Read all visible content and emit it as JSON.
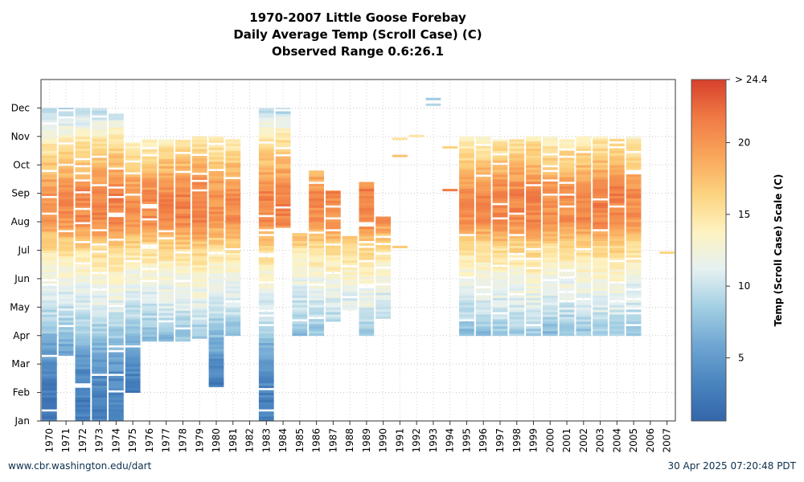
{
  "title": {
    "line1": "1970-2007 Little Goose Forebay",
    "line2": "Daily Average Temp (Scroll Case) (C)",
    "line3": "Observed Range 0.6:26.1"
  },
  "footer": {
    "left": "www.cbr.washington.edu/dart",
    "right": "30 Apr 2025 07:20:48 PDT"
  },
  "chart_data": {
    "type": "heatmap",
    "years": [
      "1970",
      "1971",
      "1972",
      "1973",
      "1974",
      "1975",
      "1976",
      "1977",
      "1978",
      "1979",
      "1980",
      "1981",
      "1982",
      "1983",
      "1984",
      "1985",
      "1986",
      "1987",
      "1988",
      "1989",
      "1990",
      "1991",
      "1992",
      "1993",
      "1994",
      "1995",
      "1996",
      "1997",
      "1998",
      "1999",
      "2000",
      "2001",
      "2002",
      "2003",
      "2004",
      "2005",
      "2006",
      "2007"
    ],
    "months": [
      "Jan",
      "Feb",
      "Mar",
      "Apr",
      "May",
      "Jun",
      "Jul",
      "Aug",
      "Sep",
      "Oct",
      "Nov",
      "Dec"
    ],
    "colorbar": {
      "label": "Temp (Scroll Case) Scale (C)",
      "ticks": [
        "5",
        "10",
        "15",
        "20"
      ],
      "top_label": "> 24.4",
      "min": 0.6,
      "max": 24.4
    },
    "colors": [
      "#3366aa",
      "#4a84bf",
      "#6fa6d2",
      "#a3cfe3",
      "#e6f1f2",
      "#fef2c0",
      "#fcd27e",
      "#f9a55a",
      "#f07a44",
      "#d7402c"
    ],
    "coverage": [
      {
        "year": "1970",
        "start": 1,
        "end": 12
      },
      {
        "year": "1971",
        "start": 3.3,
        "end": 12
      },
      {
        "year": "1972",
        "start": 1,
        "end": 12
      },
      {
        "year": "1973",
        "start": 1,
        "end": 12
      },
      {
        "year": "1974",
        "start": 1,
        "end": 11.8
      },
      {
        "year": "1975",
        "start": 2,
        "end": 10.8
      },
      {
        "year": "1976",
        "start": 3.8,
        "end": 10.9
      },
      {
        "year": "1977",
        "start": 3.8,
        "end": 10.9
      },
      {
        "year": "1978",
        "start": 3.8,
        "end": 10.9
      },
      {
        "year": "1979",
        "start": 3.9,
        "end": 11
      },
      {
        "year": "1980",
        "start": 2.2,
        "end": 11
      },
      {
        "year": "1981",
        "start": 4,
        "end": 10.9
      },
      {
        "year": "1983",
        "start": 1,
        "end": 12
      },
      {
        "year": "1984",
        "start": 7.8,
        "end": 12
      },
      {
        "year": "1985",
        "start": 4,
        "end": 7.6
      },
      {
        "year": "1986",
        "start": 4,
        "end": 9.8
      },
      {
        "year": "1987",
        "start": 4.5,
        "end": 9.1
      },
      {
        "year": "1988",
        "start": 4.9,
        "end": 7.5
      },
      {
        "year": "1989",
        "start": 4,
        "end": 9.4
      },
      {
        "year": "1990",
        "start": 4.6,
        "end": 8.2
      },
      {
        "year": "1995",
        "start": 4,
        "end": 11
      },
      {
        "year": "1996",
        "start": 4,
        "end": 11
      },
      {
        "year": "1997",
        "start": 4,
        "end": 10.9
      },
      {
        "year": "1998",
        "start": 4,
        "end": 10.9
      },
      {
        "year": "1999",
        "start": 4,
        "end": 11
      },
      {
        "year": "2000",
        "start": 4,
        "end": 11
      },
      {
        "year": "2001",
        "start": 4,
        "end": 10.9
      },
      {
        "year": "2002",
        "start": 4,
        "end": 11
      },
      {
        "year": "2003",
        "start": 4,
        "end": 11
      },
      {
        "year": "2004",
        "start": 4,
        "end": 11
      },
      {
        "year": "2005",
        "start": 4,
        "end": 11
      }
    ],
    "sparse_marks": [
      {
        "year": "1991",
        "month": 10.9
      },
      {
        "year": "1991",
        "month": 10.3
      },
      {
        "year": "1991",
        "month": 7.1
      },
      {
        "year": "1992",
        "month": 11
      },
      {
        "year": "1993",
        "month": 12.1
      },
      {
        "year": "1993",
        "month": 12.3
      },
      {
        "year": "1994",
        "month": 10.6
      },
      {
        "year": "1994",
        "month": 9.1
      },
      {
        "year": "2007",
        "month": 6.9
      }
    ]
  }
}
